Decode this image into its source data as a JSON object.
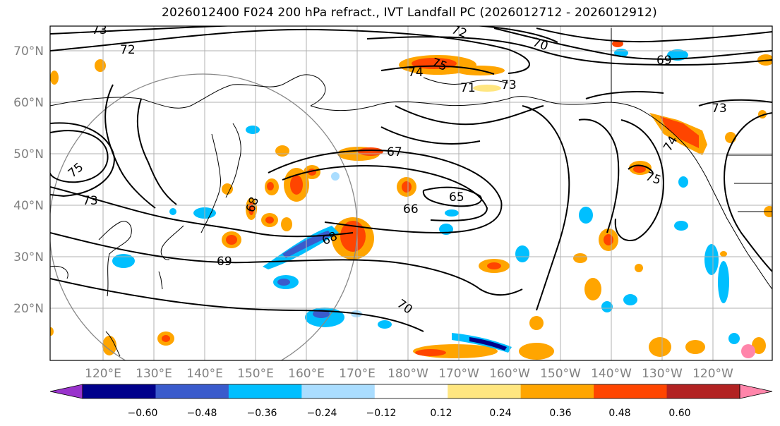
{
  "title": "2026012400 F024 200 hPa refract., IVT Landfall PC (2026012712 - 2026012912)",
  "lat_labels": [
    "70°N",
    "60°N",
    "50°N",
    "40°N",
    "30°N",
    "20°N"
  ],
  "lon_labels": [
    "120°E",
    "130°E",
    "140°E",
    "150°E",
    "160°E",
    "170°E",
    "180°W",
    "170°W",
    "160°W",
    "150°W",
    "140°W",
    "130°W",
    "120°W"
  ],
  "colorbar": {
    "tick_labels": [
      "−0.60",
      "−0.48",
      "−0.36",
      "−0.24",
      "−0.12",
      "0.12",
      "0.24",
      "0.36",
      "0.48",
      "0.60"
    ],
    "colors": [
      "#9933cc",
      "#00008b",
      "#3a5bcc",
      "#00bfff",
      "#aaddff",
      "#ffffff",
      "#ffe680",
      "#ffa500",
      "#ff4500",
      "#b22222",
      "#ff85aa"
    ]
  },
  "contour_labels": [
    "72",
    "73",
    "72",
    "70",
    "75",
    "74",
    "71",
    "73",
    "69",
    "73",
    "75",
    "73",
    "67",
    "65",
    "66",
    "68",
    "68",
    "69",
    "70",
    "75",
    "74"
  ],
  "colors": {
    "frame": "#000000",
    "grid": "#b0b0b0",
    "axis_text": "#808080"
  }
}
